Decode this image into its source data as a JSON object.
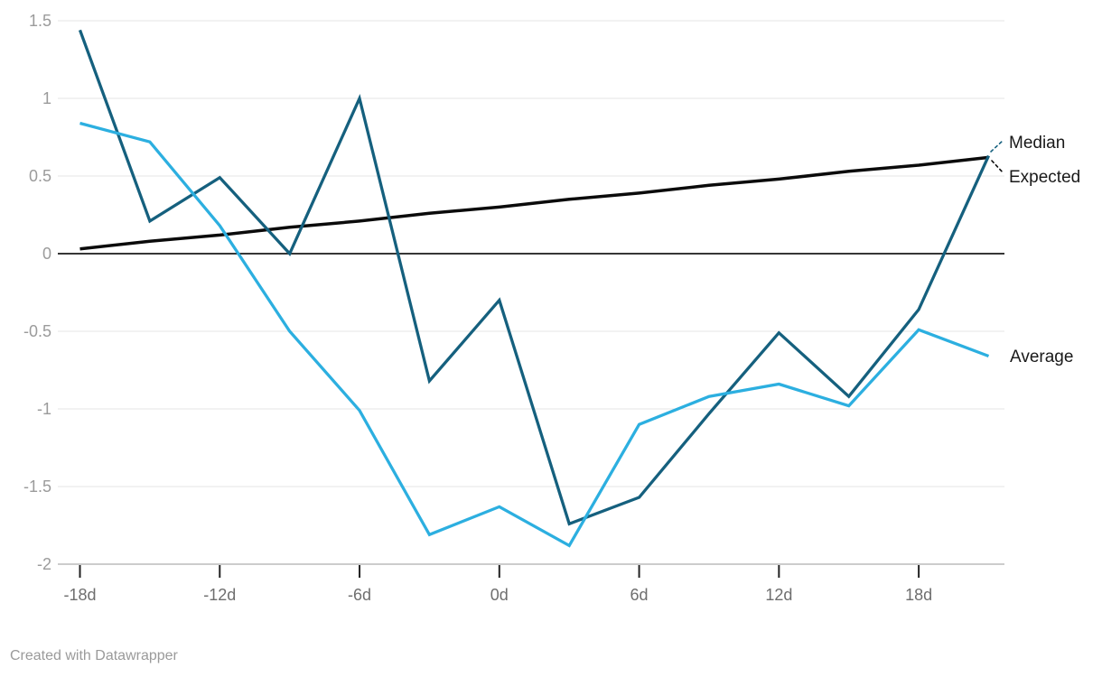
{
  "chart_data": {
    "type": "line",
    "title": "",
    "xlabel": "",
    "ylabel": "",
    "x_unit": "days",
    "x": [
      -18,
      -15,
      -12,
      -9,
      -6,
      -3,
      0,
      3,
      6,
      9,
      12,
      15,
      18,
      21
    ],
    "series": [
      {
        "name": "Median",
        "color": "#15607e",
        "values": [
          1.44,
          0.21,
          0.49,
          0.0,
          1.0,
          -0.82,
          -0.3,
          -1.74,
          -1.57,
          -1.03,
          -0.51,
          -0.92,
          -0.36,
          0.63
        ]
      },
      {
        "name": "Expected",
        "color": "#0b0b0b",
        "values": [
          0.03,
          0.08,
          0.12,
          0.17,
          0.21,
          0.26,
          0.3,
          0.35,
          0.39,
          0.44,
          0.48,
          0.53,
          0.57,
          0.62
        ]
      },
      {
        "name": "Average",
        "color": "#2cafe0",
        "values": [
          0.84,
          0.72,
          0.18,
          -0.5,
          -1.01,
          -1.81,
          -1.63,
          -1.88,
          -1.1,
          -0.92,
          -0.84,
          -0.98,
          -0.49,
          -0.66
        ]
      }
    ],
    "x_ticks": {
      "values": [
        -18,
        -12,
        -6,
        0,
        6,
        12,
        18
      ],
      "labels": [
        "-18d",
        "-12d",
        "-6d",
        "0d",
        "6d",
        "12d",
        "18d"
      ]
    },
    "y_ticks": {
      "values": [
        1.5,
        1,
        0.5,
        0,
        -0.5,
        -1,
        -1.5,
        -2
      ],
      "labels": [
        "1.5",
        "1",
        "0.5",
        "0",
        "-0.5",
        "-1",
        "-1.5",
        "-2"
      ]
    },
    "xlim": [
      -18,
      21
    ],
    "ylim": [
      -2,
      1.5
    ],
    "grid": "horizontal",
    "zero_baseline": true,
    "legend_position": "inline-right-of-line-ends"
  },
  "colors": {
    "background": "#ffffff",
    "gridline": "#e5e5e5",
    "axis_line": "#cccccc",
    "tick_mark": "#222222",
    "zero_line": "#1a1a1a",
    "x_tick_label": "#6e6e6e",
    "y_tick_label": "#9b9b9b",
    "series_label": "#191919"
  },
  "footer": {
    "credit": "Created with Datawrapper"
  }
}
